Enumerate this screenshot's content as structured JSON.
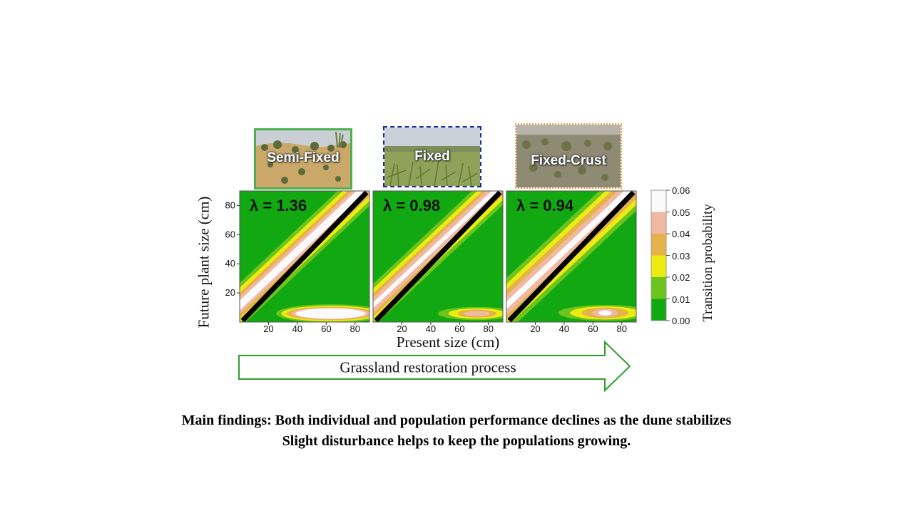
{
  "photos": [
    {
      "label": "Semi-Fixed",
      "border_color": "#4caf50",
      "border_style": "solid"
    },
    {
      "label": "Fixed",
      "border_color": "#1a2c9c",
      "border_style": "dashed"
    },
    {
      "label": "Fixed-Crust",
      "border_color": "#e8a24a",
      "border_style": "dotted"
    }
  ],
  "arrow": {
    "label": "Grassland restoration process",
    "color": "#2e9e2e"
  },
  "findings": {
    "line1": "Main findings: Both individual and population performance declines as the dune stabilizes",
    "line2": "Slight disturbance helps to keep the populations growing."
  },
  "chart_data": {
    "type": "heatmap",
    "xlabel": "Present size (cm)",
    "ylabel": "Future plant size (cm)",
    "colorbar": {
      "label": "Transition probability",
      "ticks": [
        "0.06",
        "0.05",
        "0.04",
        "0.03",
        "0.02",
        "0.01",
        "0.00"
      ],
      "colors": [
        "#fafafa",
        "#f0b9a3",
        "#e6b24a",
        "#ecec10",
        "#6cc41c",
        "#12a812"
      ]
    },
    "panels": [
      {
        "name": "Semi-Fixed",
        "lambda": "λ = 1.36",
        "xticks": [
          "20",
          "40",
          "60",
          "80"
        ],
        "yticks": [
          "20",
          "40",
          "60",
          "80"
        ],
        "xlim": [
          0,
          90
        ],
        "ylim": [
          0,
          90
        ]
      },
      {
        "name": "Fixed",
        "lambda": "λ = 0.98",
        "xticks": [
          "20",
          "40",
          "60",
          "80"
        ],
        "xlim": [
          0,
          90
        ],
        "ylim": [
          0,
          90
        ]
      },
      {
        "name": "Fixed-Crust",
        "lambda": "λ = 0.94",
        "xticks": [
          "20",
          "40",
          "60",
          "80"
        ],
        "xlim": [
          0,
          90
        ],
        "ylim": [
          0,
          90
        ]
      }
    ]
  }
}
